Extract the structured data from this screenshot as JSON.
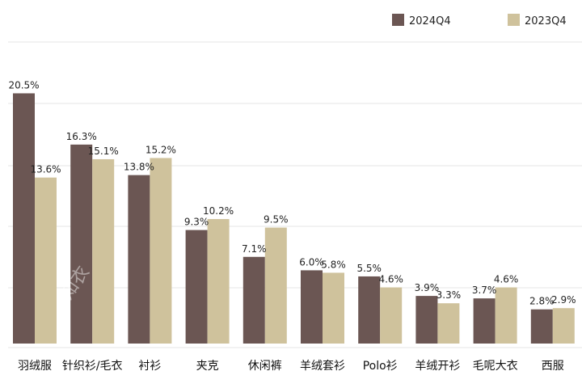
{
  "chart_data": {
    "type": "bar",
    "categories": [
      "羽绒服",
      "针织衫/毛衣",
      "衬衫",
      "夹克",
      "休闲裤",
      "羊绒套衫",
      "Polo衫",
      "羊绒开衫",
      "毛呢大衣",
      "西服"
    ],
    "series": [
      {
        "name": "2024Q4",
        "color": "#6b5653",
        "values": [
          20.5,
          16.3,
          13.8,
          9.3,
          7.1,
          6.0,
          5.5,
          3.9,
          3.7,
          2.8
        ],
        "labels": [
          "20.5%",
          "16.3%",
          "13.8%",
          "9.3%",
          "7.1%",
          "6.0%",
          "5.5%",
          "3.9%",
          "3.7%",
          "2.8%"
        ]
      },
      {
        "name": "2023Q4",
        "color": "#cfc29c",
        "values": [
          13.6,
          15.1,
          15.2,
          10.2,
          9.5,
          5.8,
          4.6,
          3.3,
          4.6,
          2.9
        ],
        "labels": [
          "13.6%",
          "15.1%",
          "15.2%",
          "10.2%",
          "9.5%",
          "5.8%",
          "4.6%",
          "3.3%",
          "4.6%",
          "2.9%"
        ]
      }
    ],
    "ylim": [
      0,
      25
    ],
    "grid": true,
    "legend_position": "top-right",
    "watermark": "知衣"
  }
}
